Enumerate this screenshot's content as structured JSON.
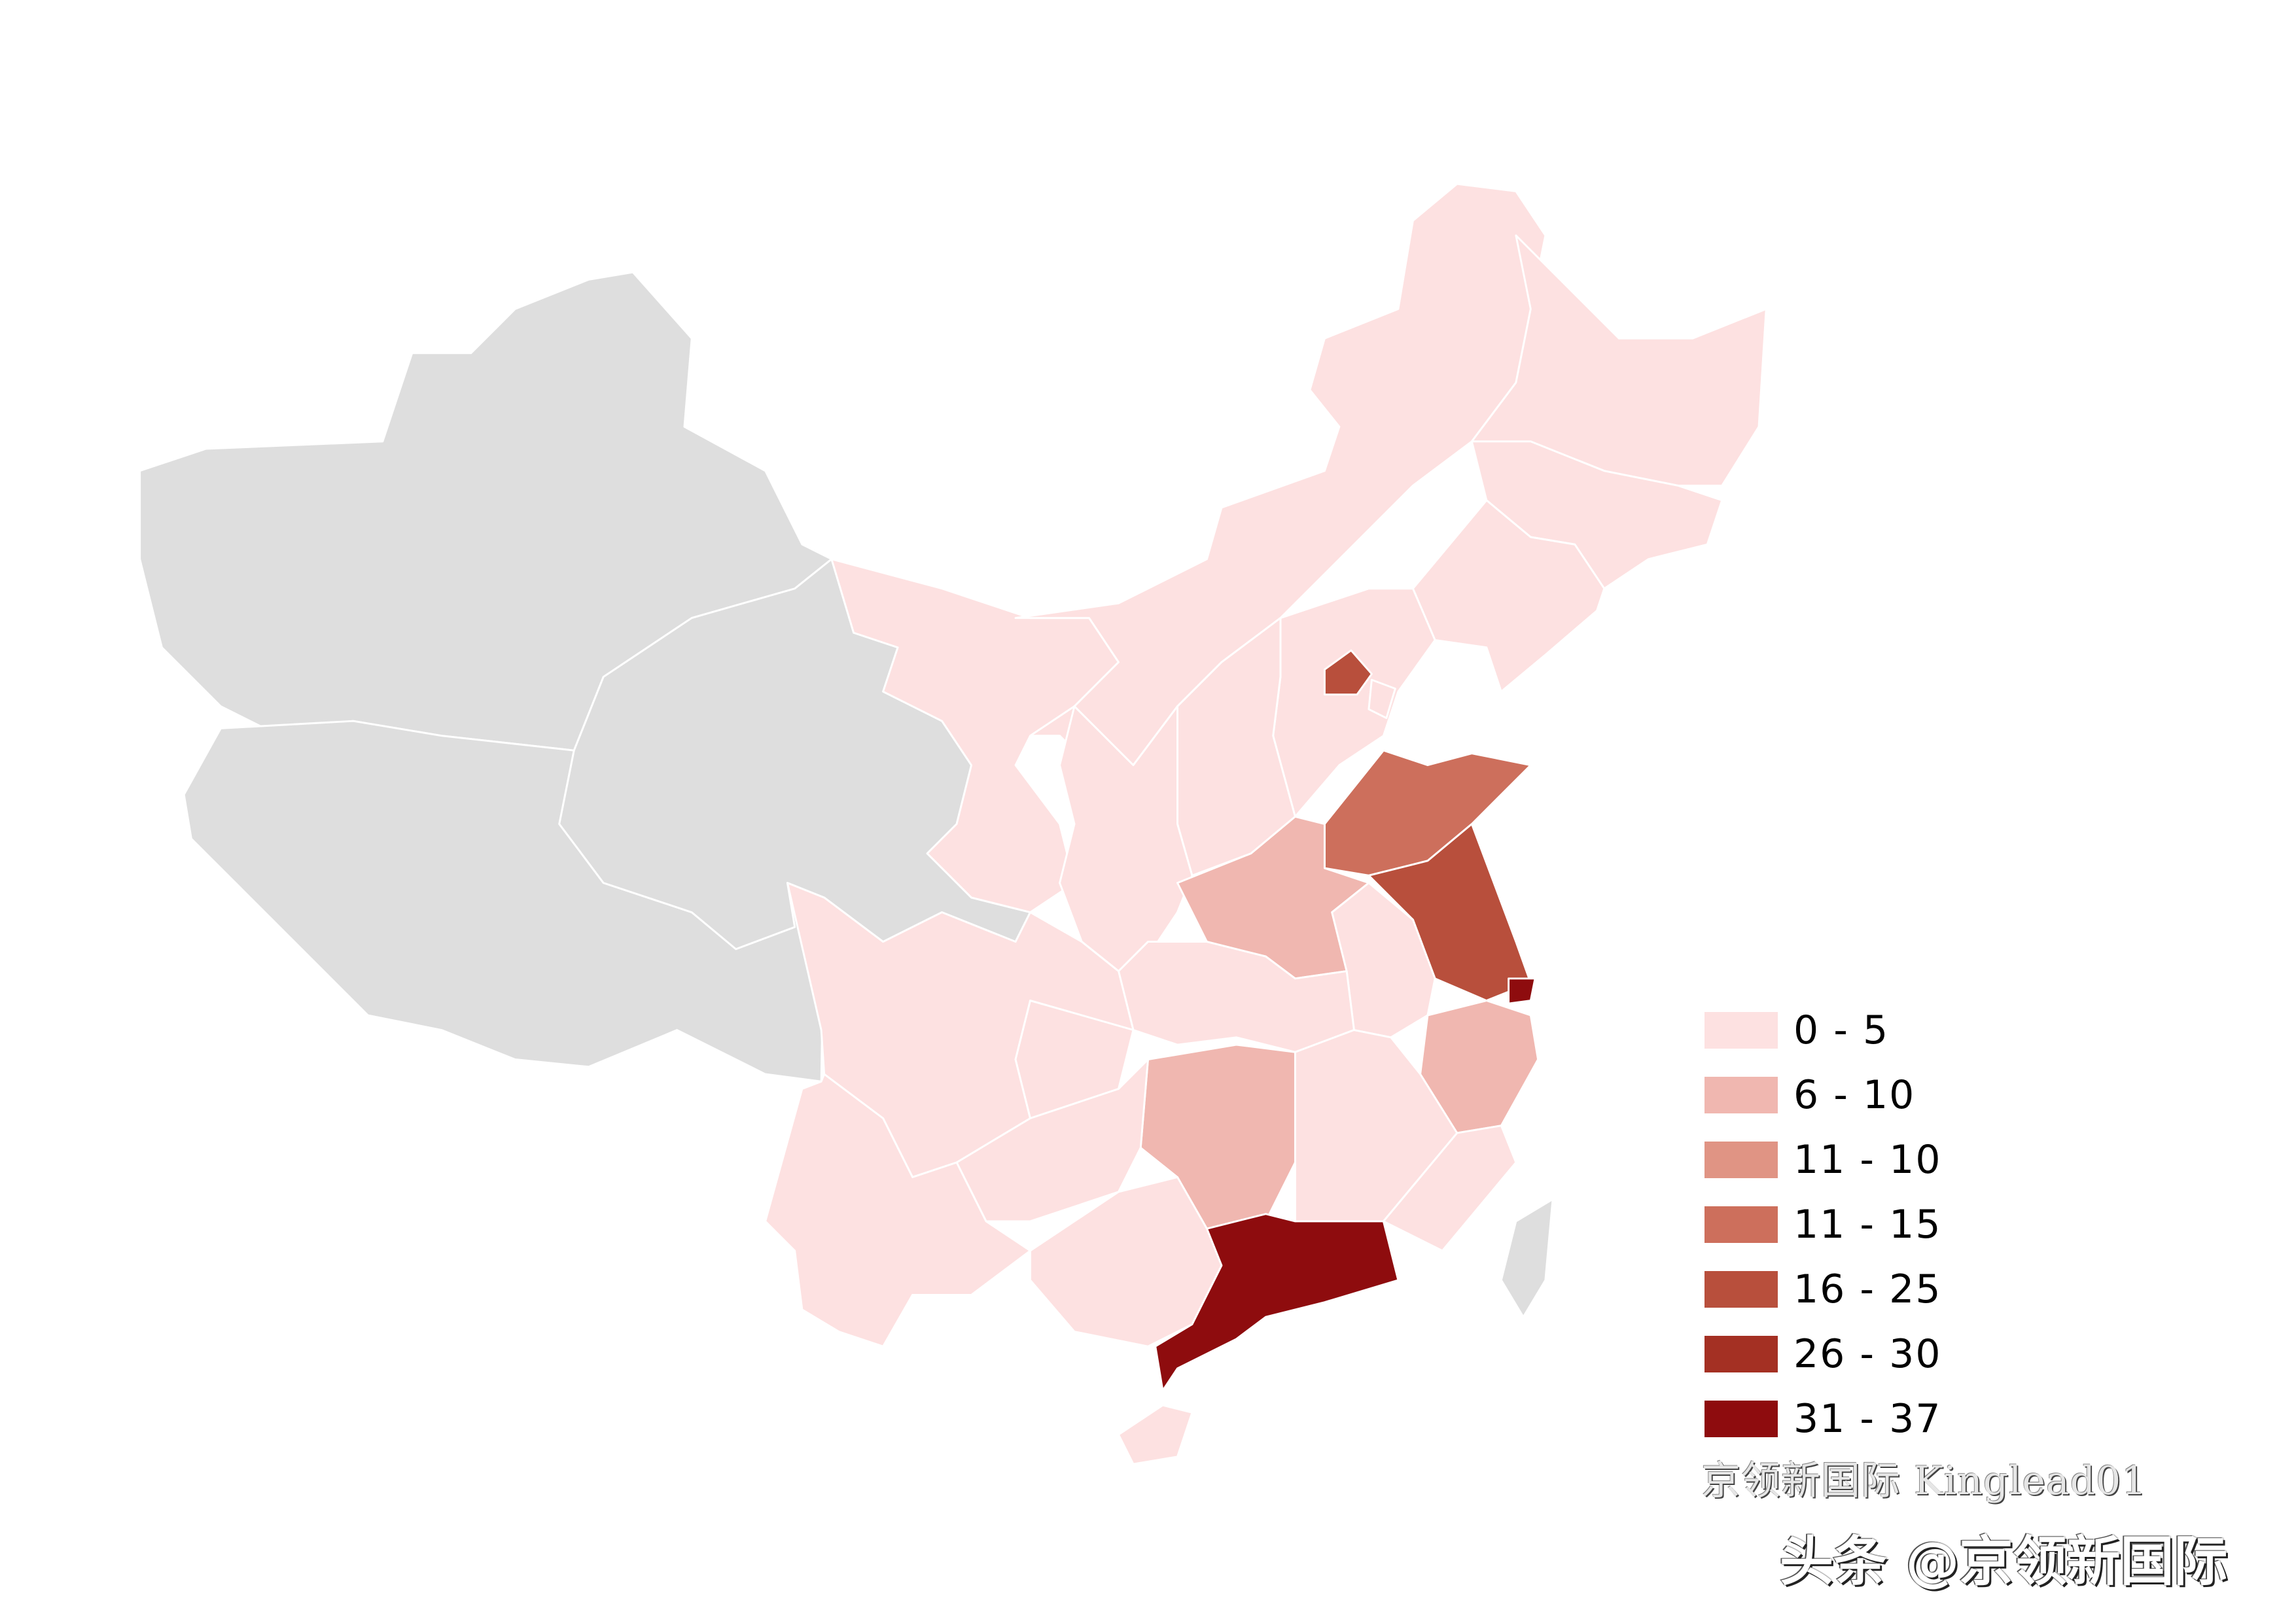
{
  "chart_data": {
    "type": "choropleth-map",
    "no_data_color": "#dedede",
    "legend": {
      "placement": "bottom-right",
      "bins": [
        {
          "label": "0 - 5",
          "color": "#fde1e1"
        },
        {
          "label": "6 - 10",
          "color": "#f0b7b0"
        },
        {
          "label": "11 - 10",
          "color": "#e09484"
        },
        {
          "label": "11 - 15",
          "color": "#cd6f5c"
        },
        {
          "label": "16 - 25",
          "color": "#b84f3c"
        },
        {
          "label": "26 - 30",
          "color": "#a43023"
        },
        {
          "label": "31 - 37",
          "color": "#8e0c0e"
        }
      ]
    },
    "region_bins": {
      "xinjiang": null,
      "tibet": null,
      "qinghai": null,
      "ningxia": null,
      "taiwan": null,
      "gansu": 0,
      "inner-mongolia": 0,
      "heilongjiang": 0,
      "jilin": 0,
      "liaoning": 0,
      "hebei": 0,
      "tianjin": 0,
      "shanxi": 0,
      "shaanxi": 0,
      "hubei": 0,
      "anhui": 0,
      "sichuan": 0,
      "chongqing": 0,
      "jiangxi": 0,
      "fujian": 0,
      "guizhou": 0,
      "yunnan": 0,
      "guangxi": 0,
      "hainan": 0,
      "henan": 1,
      "hunan": 1,
      "zhejiang": 1,
      "shandong": 3,
      "beijing": 4,
      "jiangsu": 4,
      "shanghai": 6,
      "guangdong": 6
    }
  },
  "watermarks": {
    "line1": "京领新国际 Kinglead01",
    "line2": "头条 @京领新国际"
  }
}
